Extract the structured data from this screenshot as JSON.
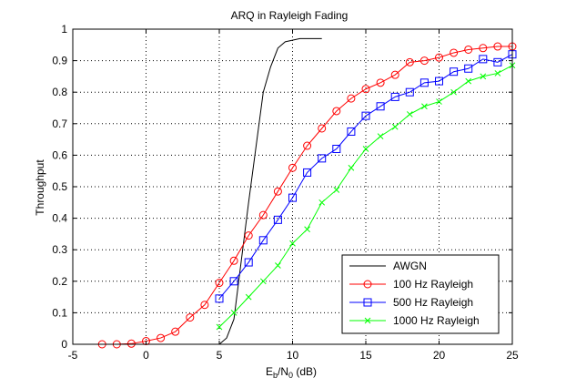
{
  "chart_data": {
    "type": "line",
    "title": "ARQ in Rayleigh Fading",
    "xlabel": {
      "main": "E",
      "sub1": "b",
      "mid": "/N",
      "sub2": "0",
      "tail": " (dB)"
    },
    "ylabel": "Throughput",
    "xlim": [
      -5,
      25
    ],
    "ylim": [
      0,
      1
    ],
    "xticks": [
      "-5",
      "0",
      "5",
      "10",
      "15",
      "20",
      "25"
    ],
    "yticks": [
      "0",
      "0.1",
      "0.2",
      "0.3",
      "0.4",
      "0.5",
      "0.6",
      "0.7",
      "0.8",
      "0.9",
      "1"
    ],
    "grid": true,
    "legend_position": "bottom-right",
    "series": [
      {
        "name": "AWGN",
        "color": "#000000",
        "marker": "none",
        "x": [
          5,
          5.5,
          6,
          7,
          8,
          8.5,
          9,
          9.5,
          10,
          10.5,
          11,
          11.5,
          12
        ],
        "y": [
          0,
          0.02,
          0.08,
          0.45,
          0.8,
          0.88,
          0.94,
          0.96,
          0.965,
          0.97,
          0.97,
          0.97,
          0.97
        ]
      },
      {
        "name": "100 Hz Rayleigh",
        "color": "#ff0000",
        "marker": "circle",
        "x": [
          -3,
          -2,
          -1,
          0,
          1,
          2,
          3,
          4,
          5,
          6,
          7,
          8,
          9,
          10,
          11,
          12,
          13,
          14,
          15,
          16,
          17,
          18,
          19,
          20,
          21,
          22,
          23,
          24,
          25
        ],
        "y": [
          0.0,
          0.0,
          0.002,
          0.01,
          0.02,
          0.04,
          0.085,
          0.125,
          0.195,
          0.265,
          0.345,
          0.41,
          0.485,
          0.56,
          0.63,
          0.685,
          0.74,
          0.78,
          0.81,
          0.83,
          0.855,
          0.895,
          0.9,
          0.91,
          0.925,
          0.935,
          0.94,
          0.945,
          0.945
        ]
      },
      {
        "name": "500 Hz Rayleigh",
        "color": "#0000ff",
        "marker": "square",
        "x": [
          5,
          6,
          7,
          8,
          9,
          10,
          11,
          12,
          13,
          14,
          15,
          16,
          17,
          18,
          19,
          20,
          21,
          22,
          23,
          24,
          25
        ],
        "y": [
          0.145,
          0.2,
          0.26,
          0.33,
          0.395,
          0.465,
          0.545,
          0.59,
          0.62,
          0.675,
          0.725,
          0.755,
          0.785,
          0.8,
          0.83,
          0.835,
          0.865,
          0.875,
          0.905,
          0.895,
          0.92
        ]
      },
      {
        "name": "1000 Hz Rayleigh",
        "color": "#00ff00",
        "marker": "x",
        "x": [
          5,
          6,
          7,
          8,
          9,
          10,
          11,
          12,
          13,
          14,
          15,
          16,
          17,
          18,
          19,
          20,
          21,
          22,
          23,
          24,
          25
        ],
        "y": [
          0.055,
          0.1,
          0.15,
          0.2,
          0.25,
          0.32,
          0.365,
          0.45,
          0.49,
          0.56,
          0.62,
          0.66,
          0.69,
          0.73,
          0.755,
          0.77,
          0.8,
          0.835,
          0.85,
          0.86,
          0.885
        ]
      }
    ]
  }
}
